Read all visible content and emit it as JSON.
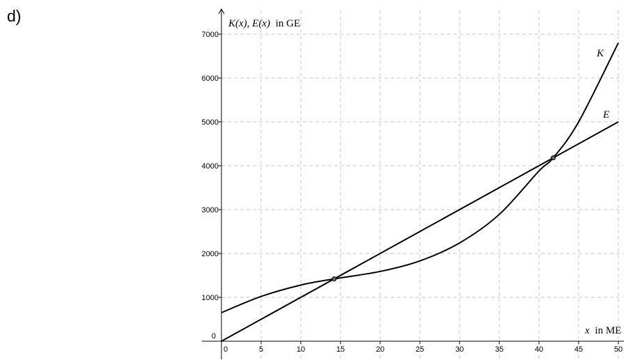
{
  "task_label": "d)",
  "chart_data": {
    "type": "line",
    "title": "",
    "xlabel_var": "x",
    "xlabel_unit": "in ME",
    "ylabel_var": "K(x), E(x)",
    "ylabel_unit": "in GE",
    "xlim": [
      0,
      50
    ],
    "ylim": [
      0,
      7000
    ],
    "x_ticks": [
      0,
      5,
      10,
      15,
      20,
      25,
      30,
      35,
      40,
      45,
      50
    ],
    "y_ticks": [
      0,
      1000,
      2000,
      3000,
      4000,
      5000,
      6000,
      7000
    ],
    "grid": true,
    "series": [
      {
        "name": "K",
        "x": [
          0,
          5,
          10,
          14.2,
          20,
          25,
          30,
          35,
          40,
          41.8,
          45,
          50
        ],
        "values": [
          650,
          1020,
          1280,
          1420,
          1590,
          1830,
          2240,
          2890,
          3880,
          4180,
          5000,
          6800
        ]
      },
      {
        "name": "E",
        "x": [
          0,
          50
        ],
        "values": [
          0,
          5000
        ]
      }
    ],
    "intersections": [
      {
        "x": 14.2,
        "y": 1420
      },
      {
        "x": 41.8,
        "y": 4180
      }
    ]
  }
}
